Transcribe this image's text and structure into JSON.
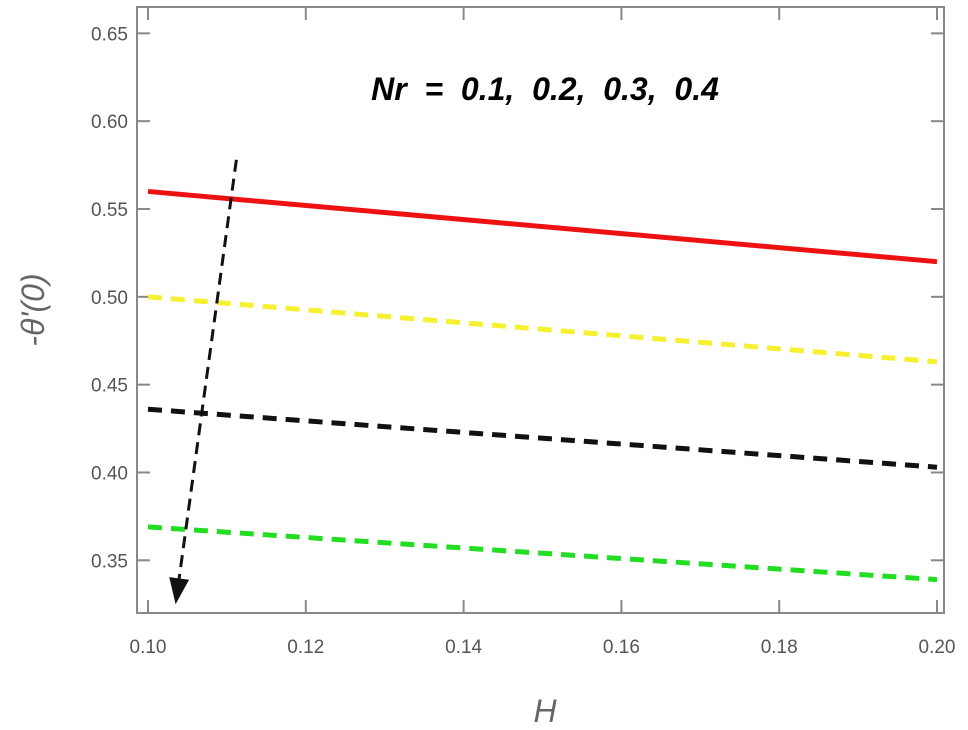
{
  "chart_data": {
    "type": "line",
    "xlabel": "H",
    "ylabel": "-θ'(0)",
    "xlim": [
      0.1,
      0.2
    ],
    "ylim": [
      0.32,
      0.665
    ],
    "x_ticks": [
      "0.10",
      "0.12",
      "0.14",
      "0.16",
      "0.18",
      "0.20"
    ],
    "y_ticks": [
      "0.35",
      "0.40",
      "0.45",
      "0.50",
      "0.55",
      "0.60",
      "0.65"
    ],
    "annotation": "Nr  =  0.1,  0.2,  0.3,  0.4",
    "grid": false,
    "series": [
      {
        "color": "#ee1111",
        "style": "solid",
        "x": [
          0.1,
          0.2
        ],
        "y": [
          0.56,
          0.52
        ]
      },
      {
        "color": "#f5f030",
        "style": "dashed",
        "x": [
          0.1,
          0.2
        ],
        "y": [
          0.5,
          0.463
        ]
      },
      {
        "color": "#111111",
        "style": "dashed",
        "x": [
          0.1,
          0.2
        ],
        "y": [
          0.436,
          0.403
        ]
      },
      {
        "color": "#22dd22",
        "style": "dashed",
        "x": [
          0.1,
          0.2
        ],
        "y": [
          0.369,
          0.339
        ]
      }
    ],
    "arrow": {
      "direction": "decreasing",
      "x": [
        0.1112,
        0.1035
      ],
      "y": [
        0.578,
        0.325
      ]
    }
  }
}
